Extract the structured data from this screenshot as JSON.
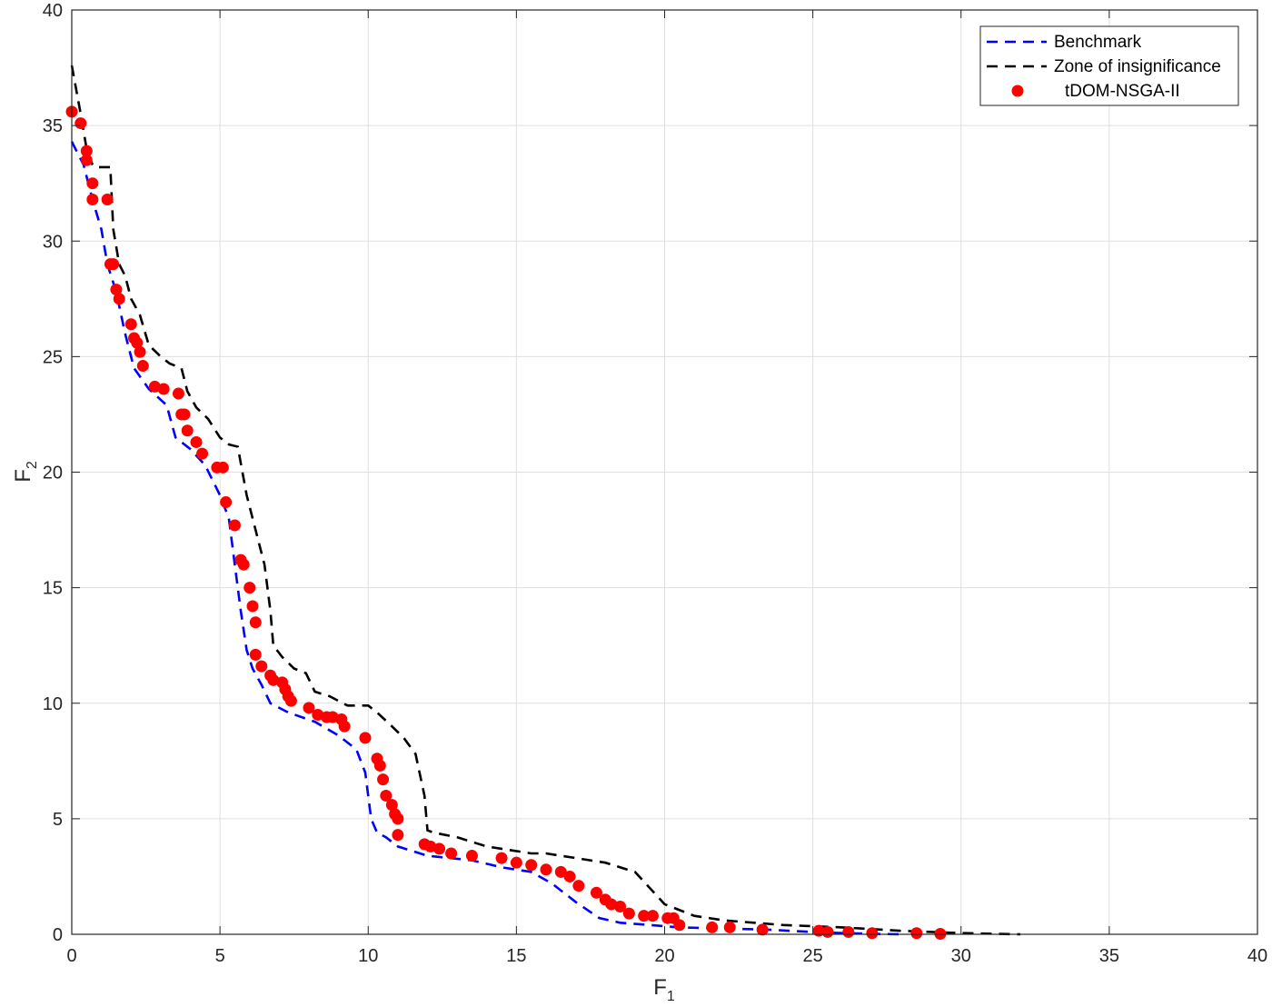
{
  "chart_data": {
    "type": "scatter",
    "title": "",
    "xlabel": {
      "main": "F",
      "sub": "1"
    },
    "ylabel": {
      "main": "F",
      "sub": "2"
    },
    "xlim": [
      0,
      40
    ],
    "ylim": [
      0,
      40
    ],
    "xticks": [
      0,
      5,
      10,
      15,
      20,
      25,
      30,
      35,
      40
    ],
    "yticks": [
      0,
      5,
      10,
      15,
      20,
      25,
      30,
      35,
      40
    ],
    "grid": true,
    "legend_position": "top-right",
    "series": [
      {
        "name": "Benchmark",
        "kind": "line",
        "style": "dashed",
        "color": "#0000ff",
        "x": [
          0,
          0.4,
          0.7,
          1.0,
          1.2,
          1.5,
          1.8,
          2.1,
          2.6,
          3.2,
          3.5,
          4.0,
          4.5,
          5.0,
          5.3,
          5.5,
          5.7,
          5.9,
          6.1,
          6.4,
          6.7,
          7.3,
          8.2,
          9.0,
          9.6,
          9.9,
          10.1,
          10.3,
          10.6,
          11.0,
          12.0,
          13.5,
          14.5,
          15.5,
          16.2,
          17.0,
          17.8,
          18.5,
          19.5,
          20.5,
          22.0,
          23.5,
          25.0,
          26.0,
          27.0,
          28.0
        ],
        "y": [
          34.3,
          33.3,
          31.8,
          30.5,
          29.0,
          27.8,
          26.0,
          24.5,
          23.6,
          22.9,
          21.5,
          21.0,
          20.3,
          19.0,
          18.0,
          16.0,
          14.0,
          12.3,
          11.5,
          10.8,
          10.0,
          9.6,
          9.2,
          8.6,
          8.0,
          7.0,
          5.0,
          4.4,
          4.2,
          3.8,
          3.4,
          3.2,
          2.9,
          2.7,
          2.2,
          1.4,
          0.7,
          0.5,
          0.4,
          0.3,
          0.25,
          0.2,
          0.1,
          0.05,
          0.02,
          0.0
        ]
      },
      {
        "name": "Zone of insignificance",
        "kind": "line",
        "style": "dashed",
        "color": "#000000",
        "x": [
          0,
          0.3,
          0.5,
          0.7,
          0.8,
          1.0,
          1.3,
          1.4,
          1.6,
          1.8,
          2.0,
          2.3,
          2.6,
          3.0,
          3.3,
          3.7,
          3.9,
          4.2,
          4.6,
          5.0,
          5.3,
          5.6,
          5.9,
          6.2,
          6.5,
          6.7,
          6.8,
          7.1,
          7.5,
          7.9,
          8.2,
          8.7,
          9.3,
          10.0,
          10.3,
          10.8,
          11.2,
          11.6,
          11.9,
          12.0,
          12.2,
          13.0,
          14.0,
          15.5,
          16.0,
          17.0,
          18.0,
          19.0,
          19.5,
          20.0,
          21.0,
          22.0,
          24.0,
          26.0,
          28.0,
          30.0,
          32.0
        ],
        "y": [
          37.6,
          35.5,
          34.0,
          33.3,
          33.2,
          33.2,
          33.2,
          30.5,
          29.0,
          28.5,
          27.5,
          26.8,
          25.5,
          25.0,
          24.7,
          24.5,
          23.5,
          22.8,
          22.3,
          21.5,
          21.2,
          21.1,
          19.0,
          17.5,
          16.0,
          14.0,
          12.5,
          12.0,
          11.5,
          11.3,
          10.5,
          10.3,
          9.9,
          9.9,
          9.6,
          9.0,
          8.5,
          7.8,
          6.0,
          4.5,
          4.4,
          4.2,
          3.8,
          3.5,
          3.5,
          3.3,
          3.1,
          2.7,
          2.0,
          1.3,
          0.8,
          0.6,
          0.4,
          0.3,
          0.15,
          0.05,
          0.0
        ]
      },
      {
        "name": "tDOM-NSGA-II",
        "kind": "scatter",
        "color": "#ff0000",
        "x": [
          0.0,
          0.3,
          0.5,
          0.5,
          0.7,
          0.7,
          1.2,
          1.3,
          1.4,
          1.5,
          1.6,
          2.0,
          2.1,
          2.2,
          2.3,
          2.4,
          2.8,
          3.1,
          3.6,
          3.7,
          3.8,
          3.9,
          4.2,
          4.4,
          4.9,
          5.1,
          5.2,
          5.5,
          5.7,
          5.8,
          6.0,
          6.1,
          6.2,
          6.2,
          6.4,
          6.7,
          6.8,
          7.1,
          7.2,
          7.3,
          7.4,
          8.0,
          8.3,
          8.6,
          8.8,
          9.1,
          9.2,
          9.9,
          10.3,
          10.4,
          10.5,
          10.6,
          10.8,
          10.9,
          11.0,
          11.0,
          11.9,
          12.1,
          12.4,
          12.8,
          13.5,
          14.5,
          15.0,
          15.5,
          16.0,
          16.5,
          16.8,
          17.1,
          17.7,
          18.0,
          18.2,
          18.5,
          18.8,
          19.3,
          19.6,
          20.1,
          20.3,
          20.5,
          21.6,
          22.2,
          23.3,
          25.2,
          25.5,
          26.2,
          27.0,
          28.5,
          29.3
        ],
        "y": [
          35.6,
          35.1,
          33.9,
          33.5,
          32.5,
          31.8,
          31.8,
          29.0,
          29.0,
          27.9,
          27.5,
          26.4,
          25.8,
          25.6,
          25.2,
          24.6,
          23.7,
          23.6,
          23.4,
          22.5,
          22.5,
          21.8,
          21.3,
          20.8,
          20.2,
          20.2,
          18.7,
          17.7,
          16.2,
          16.0,
          15.0,
          14.2,
          13.5,
          12.1,
          11.6,
          11.2,
          11.0,
          10.9,
          10.6,
          10.3,
          10.1,
          9.8,
          9.5,
          9.4,
          9.4,
          9.3,
          9.0,
          8.5,
          7.6,
          7.3,
          6.7,
          6.0,
          5.6,
          5.2,
          5.0,
          4.3,
          3.9,
          3.8,
          3.7,
          3.5,
          3.4,
          3.3,
          3.1,
          3.0,
          2.8,
          2.7,
          2.5,
          2.1,
          1.8,
          1.5,
          1.3,
          1.2,
          0.9,
          0.8,
          0.8,
          0.7,
          0.7,
          0.4,
          0.3,
          0.3,
          0.2,
          0.15,
          0.1,
          0.1,
          0.05,
          0.05,
          0.02
        ]
      }
    ]
  }
}
